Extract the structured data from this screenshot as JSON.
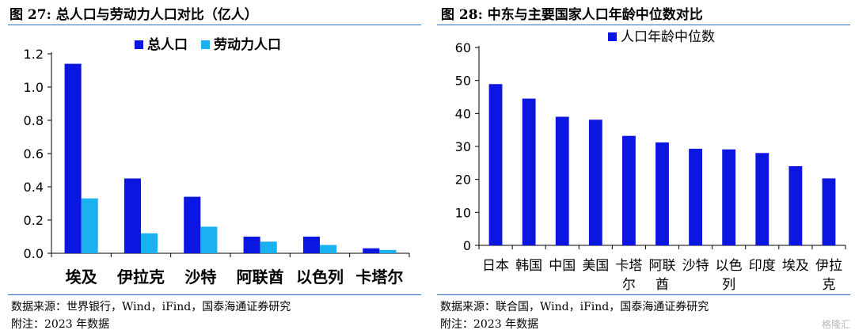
{
  "left": {
    "fig_title": "图 27:  总人口与劳动力人口对比（亿人）",
    "source": "数据来源：世界银行，Wind，iFind，国泰海通证券研究",
    "note": "附注：2023 年数据"
  },
  "right": {
    "fig_title": "图 28:  中东与主要国家人口年龄中位数对比",
    "source": "数据来源：联合国，Wind，iFind，国泰海通证券研究",
    "note": "附注：2023 年数据"
  },
  "watermark": "格隆汇",
  "chart_data": [
    {
      "type": "bar",
      "title": "图 27:  总人口与劳动力人口对比（亿人）",
      "categories": [
        "埃及",
        "伊拉克",
        "沙特",
        "阿联酋",
        "以色列",
        "卡塔尔"
      ],
      "series": [
        {
          "name": "总人口",
          "color": "#0b16e0",
          "values": [
            1.14,
            0.45,
            0.34,
            0.1,
            0.1,
            0.03
          ]
        },
        {
          "name": "劳动力人口",
          "color": "#19b1ef",
          "values": [
            0.33,
            0.12,
            0.16,
            0.07,
            0.05,
            0.02
          ]
        }
      ],
      "yticks": [
        "0.0",
        "0.2",
        "0.4",
        "0.6",
        "0.8",
        "1.0",
        "1.2"
      ],
      "ylim": [
        0,
        1.2
      ],
      "grid": false,
      "legend": "top"
    },
    {
      "type": "bar",
      "title": "图 28:  中东与主要国家人口年龄中位数对比",
      "categories": [
        "日本",
        "韩国",
        "中国",
        "美国",
        "卡塔尔",
        "阿联酋",
        "沙特",
        "以色列",
        "印度",
        "埃及",
        "伊拉克"
      ],
      "series": [
        {
          "name": "人口年龄中位数",
          "color": "#0b16e0",
          "values": [
            48.9,
            44.5,
            39.0,
            38.1,
            33.2,
            31.2,
            29.3,
            29.1,
            28.0,
            24.0,
            20.3
          ]
        }
      ],
      "yticks": [
        "0",
        "10",
        "20",
        "30",
        "40",
        "50",
        "60"
      ],
      "ylim": [
        0,
        60
      ],
      "grid": false,
      "legend": "top"
    }
  ]
}
